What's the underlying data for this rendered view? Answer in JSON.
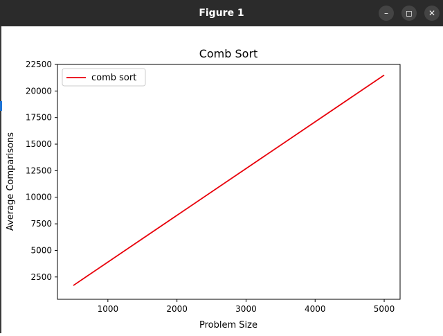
{
  "window": {
    "title": "Figure 1",
    "minimize_icon": "minimize-icon",
    "maximize_icon": "maximize-icon",
    "close_icon": "close-icon"
  },
  "chart_data": {
    "type": "line",
    "title": "Comb Sort",
    "xlabel": "Problem Size",
    "ylabel": "Average Comparisons",
    "xlim": [
      270,
      5230
    ],
    "ylim": [
      400,
      22500
    ],
    "xticks": [
      1000,
      2000,
      3000,
      4000,
      5000
    ],
    "yticks": [
      2500,
      5000,
      7500,
      10000,
      12500,
      15000,
      17500,
      20000,
      22500
    ],
    "legend_position": "top-left",
    "grid": false,
    "series": [
      {
        "name": "comb sort",
        "color": "#e8000b",
        "x": [
          500,
          5000
        ],
        "y": [
          1700,
          21500
        ]
      }
    ]
  }
}
